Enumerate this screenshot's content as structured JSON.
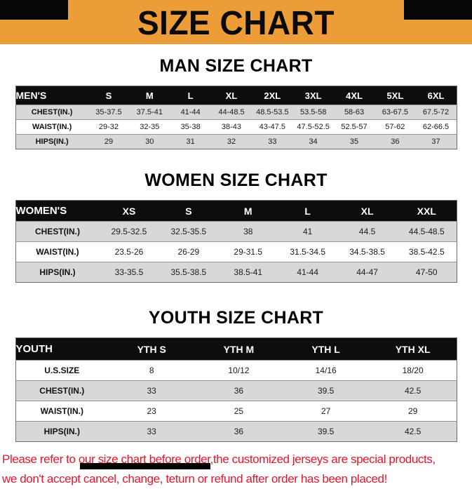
{
  "banner": {
    "title": "SIZE CHART"
  },
  "colors": {
    "banner_bg": "#ED9D38",
    "table_header_bg": "#0d0d0d",
    "row_alt_gray": "#d8d8d8",
    "note_red": "#E8152B"
  },
  "men": {
    "heading": "MAN SIZE CHART",
    "table": {
      "header": [
        "MEN'S",
        "S",
        "M",
        "L",
        "XL",
        "2XL",
        "3XL",
        "4XL",
        "5XL",
        "6XL"
      ],
      "rows": [
        [
          "CHEST(IN.)",
          "35-37.5",
          "37.5-41",
          "41-44",
          "44-48.5",
          "48.5-53.5",
          "53.5-58",
          "58-63",
          "63-67.5",
          "67.5-72"
        ],
        [
          "WAIST(IN.)",
          "29-32",
          "32-35",
          "35-38",
          "38-43",
          "43-47.5",
          "47.5-52.5",
          "52.5-57",
          "57-62",
          "62-66.5"
        ],
        [
          "HIPS(IN.)",
          "29",
          "30",
          "31",
          "32",
          "33",
          "34",
          "35",
          "36",
          "37"
        ]
      ]
    }
  },
  "women": {
    "heading": "WOMEN SIZE CHART",
    "table": {
      "header": [
        "WOMEN'S",
        "XS",
        "S",
        "M",
        "L",
        "XL",
        "XXL"
      ],
      "rows": [
        [
          "CHEST(IN.)",
          "29.5-32.5",
          "32.5-35.5",
          "38",
          "41",
          "44.5",
          "44.5-48.5"
        ],
        [
          "WAIST(IN.)",
          "23.5-26",
          "26-29",
          "29-31.5",
          "31.5-34.5",
          "34.5-38.5",
          "38.5-42.5"
        ],
        [
          "HIPS(IN.)",
          "33-35.5",
          "35.5-38.5",
          "38.5-41",
          "41-44",
          "44-47",
          "47-50"
        ]
      ]
    }
  },
  "youth": {
    "heading": "YOUTH SIZE CHART",
    "table": {
      "header": [
        "YOUTH",
        "YTH S",
        "YTH M",
        "YTH L",
        "YTH XL"
      ],
      "rows": [
        [
          "U.S.SIZE",
          "8",
          "10/12",
          "14/16",
          "18/20"
        ],
        [
          "CHEST(IN.)",
          "33",
          "36",
          "39.5",
          "42.5"
        ],
        [
          "WAIST(IN.)",
          "23",
          "25",
          "27",
          "29"
        ],
        [
          "HIPS(IN.)",
          "33",
          "36",
          "39.5",
          "42.5"
        ]
      ]
    }
  },
  "note": {
    "line1": "Please refer to our size chart before order,the customized jerseys are special products,",
    "line2": "we don't accept cancel, change, teturn or refund after order has been placed!"
  }
}
